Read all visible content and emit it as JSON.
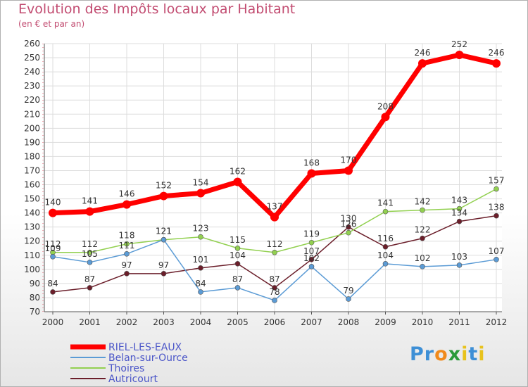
{
  "header": {
    "title": "Evolution des Impôts locaux par Habitant",
    "subtitle": "(en € et par an)"
  },
  "logo": {
    "text": "Proxiti",
    "letters": [
      "P",
      "r",
      "o",
      "x",
      "i",
      "t",
      "i"
    ],
    "colors": [
      "#3d8fd6",
      "#3d8fd6",
      "#f08a1c",
      "#2a9a3a",
      "#e8c21c",
      "#3d8fd6",
      "#e8c21c"
    ]
  },
  "chart_data": {
    "type": "line",
    "title": "Evolution des Impôts locaux par Habitant",
    "subtitle": "(en € et par an)",
    "xlabel": "",
    "ylabel": "",
    "x": [
      "2000",
      "2001",
      "2002",
      "2003",
      "2004",
      "2005",
      "2006",
      "2007",
      "2008",
      "2009",
      "2010",
      "2011",
      "2012"
    ],
    "ylim": [
      70,
      260
    ],
    "yticks": [
      70,
      80,
      90,
      100,
      110,
      120,
      130,
      140,
      150,
      160,
      170,
      180,
      190,
      200,
      210,
      220,
      230,
      240,
      250,
      260
    ],
    "grid": true,
    "legend_position": "bottom-left",
    "series": [
      {
        "name": "RIEL-LES-EAUX",
        "color": "#ff0000",
        "values": [
          140,
          141,
          146,
          152,
          154,
          162,
          137,
          168,
          170,
          208,
          246,
          252,
          246
        ],
        "labels": [
          "140",
          "141",
          "146",
          "152",
          "154",
          "162",
          "137",
          "168",
          "170",
          "208",
          "246",
          "252",
          "246"
        ]
      },
      {
        "name": "Belan-sur-Ource",
        "color": "#5b9bd5",
        "values": [
          109,
          105,
          111,
          121,
          84,
          87,
          78,
          102,
          79,
          104,
          102,
          103,
          107
        ],
        "labels": [
          "109",
          "105",
          "111",
          "121",
          "84",
          "87",
          "78",
          "102",
          "79",
          "104",
          "102",
          "103",
          "107"
        ]
      },
      {
        "name": "Thoires",
        "color": "#92d050",
        "values": [
          112,
          112,
          118,
          121,
          123,
          115,
          112,
          119,
          126,
          141,
          142,
          143,
          157
        ],
        "labels": [
          "112",
          "112",
          "118",
          "121",
          "123",
          "115",
          "112",
          "119",
          "126",
          "141",
          "142",
          "143",
          "157"
        ]
      },
      {
        "name": "Autricourt",
        "color": "#6b1e2a",
        "values": [
          84,
          87,
          97,
          97,
          101,
          104,
          87,
          107,
          130,
          116,
          122,
          134,
          138
        ],
        "labels": [
          "84",
          "87",
          "97",
          "97",
          "101",
          "104",
          "87",
          "107",
          "130",
          "116",
          "122",
          "134",
          "138"
        ]
      }
    ]
  }
}
